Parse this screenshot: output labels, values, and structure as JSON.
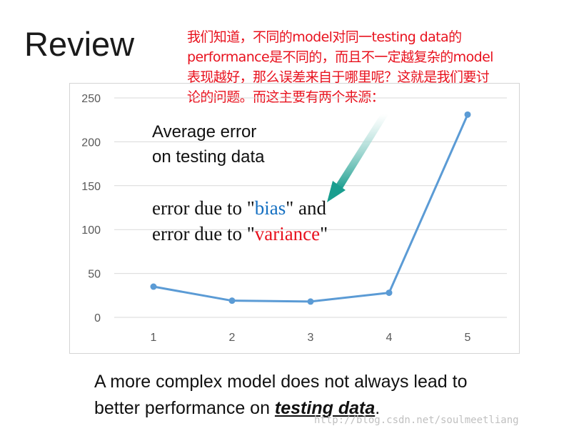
{
  "title": "Review",
  "note": {
    "lines": [
      "我们知道，不同的model对同一testing data的",
      "performance是不同的，而且不一定越复杂的model",
      "表现越好，那么误差来自于哪里呢？这就是我们要讨",
      "论的问题。而这主要有两个来源："
    ],
    "color": "#e8121e"
  },
  "chart_data": {
    "type": "line",
    "categories": [
      "1",
      "2",
      "3",
      "4",
      "5"
    ],
    "series": [
      {
        "values": [
          35,
          19,
          18,
          28,
          231
        ],
        "color": "#5b9bd5"
      }
    ],
    "ylim": [
      0,
      250
    ],
    "yticks": [
      0,
      50,
      100,
      150,
      200,
      250
    ],
    "grid": true,
    "annotations": {
      "line1": "Average error",
      "line2": "on testing data",
      "error_prefix": "error due to \"",
      "bias": "bias",
      "bias_suffix": "\" and",
      "variance": "variance",
      "variance_suffix": "\""
    }
  },
  "caption": {
    "line1": "A more complex model does not always lead to",
    "line2_prefix": "better performance on ",
    "line2_emphasis": "testing data",
    "line2_suffix": "."
  },
  "watermark": "http://blog.csdn.net/soulmeetliang",
  "colors": {
    "arrow": "#1a9e8f",
    "bias": "#1570c2",
    "variance": "#e8121e"
  }
}
